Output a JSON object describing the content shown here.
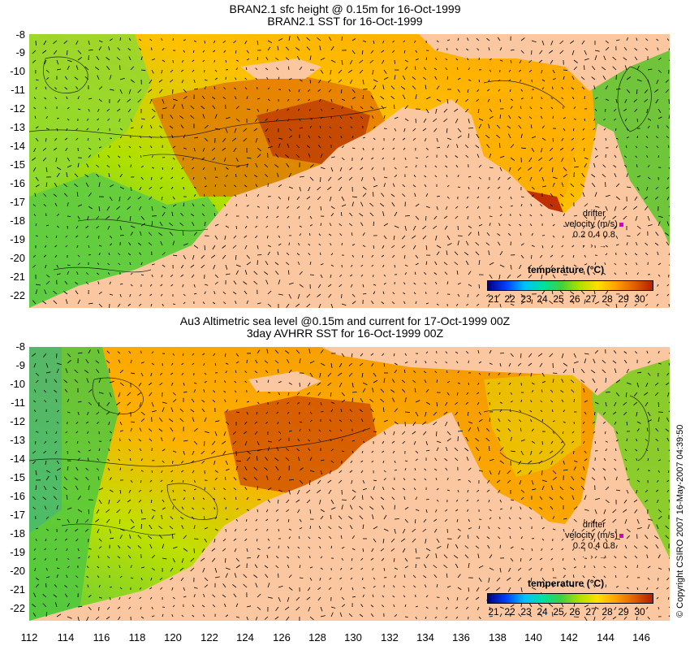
{
  "top_panel": {
    "title_line1": "BRAN2.1 sfc height @ 0.15m for 16-Oct-1999",
    "title_line2": "BRAN2.1 SST for 16-Oct-1999",
    "legend_title": "temperature (°C)",
    "drifter_label": "drifter",
    "velocity_label": "velocity (m/s)",
    "velocity_values": "0.2 0.4 0.8"
  },
  "bottom_panel": {
    "title_line1": "Au3 Altimetric sea level  @0.15m and current for 17-Oct-1999 00Z",
    "title_line2": "3day AVHRR SST for 16-Oct-1999 00Z",
    "legend_title": "temperature (°C)",
    "drifter_label": "drifter",
    "velocity_label": "velocity (m/s)",
    "velocity_values": "0.2 0.4 0.8"
  },
  "latitude_ticks": [
    "-8",
    "-9",
    "-10",
    "-11",
    "-12",
    "-13",
    "-14",
    "-15",
    "-16",
    "-17",
    "-18",
    "-19",
    "-20",
    "-21",
    "-22"
  ],
  "longitude_ticks": [
    "112",
    "114",
    "116",
    "118",
    "120",
    "122",
    "124",
    "126",
    "128",
    "130",
    "132",
    "134",
    "136",
    "138",
    "140",
    "142",
    "144",
    "146"
  ],
  "temperature_scale": [
    "21",
    "22",
    "23",
    "24",
    "25",
    "26",
    "27",
    "28",
    "29",
    "30"
  ],
  "copyright": "© Copyright CSIRO 2007     16-May-2007 04:39:50",
  "colors": {
    "land": "#fbc7a0",
    "temp_gradient": [
      "#000080",
      "#0040ff",
      "#00c0ff",
      "#00e0a0",
      "#40d040",
      "#b0e000",
      "#ffe000",
      "#ffa000",
      "#e06000",
      "#b02000"
    ]
  }
}
